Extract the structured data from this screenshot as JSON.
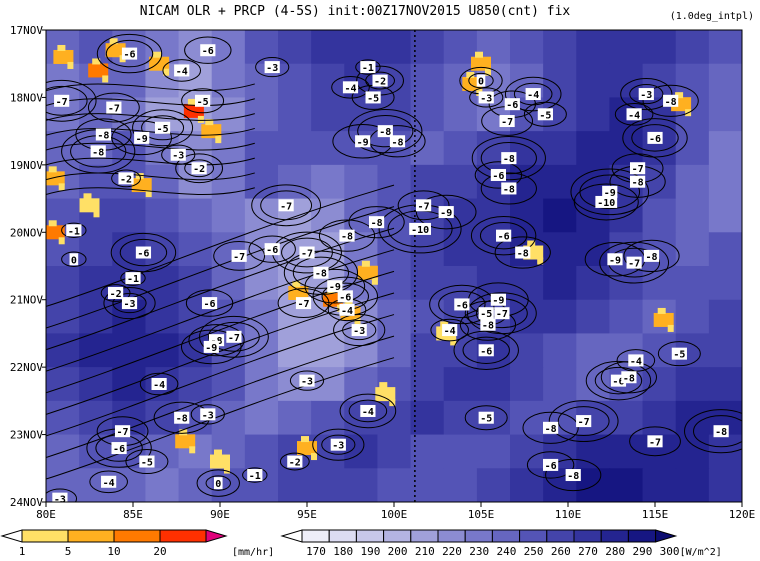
{
  "title": "NICAM  OLR + PRCP (4-5S) init:00Z17NOV2015 U850(cnt) fix",
  "subtitle": "(1.0deg_intpl)",
  "chart_data": {
    "type": "heatmap",
    "xlabel": "",
    "ylabel": "",
    "xlim": [
      80,
      120
    ],
    "x_ticks": [
      "80E",
      "85E",
      "90E",
      "95E",
      "100E",
      "105E",
      "110E",
      "115E",
      "120E"
    ],
    "x_tick_values": [
      80,
      85,
      90,
      95,
      100,
      105,
      110,
      115,
      120
    ],
    "y_ticks": [
      "17NOV",
      "18NOV",
      "19NOV",
      "20NOV",
      "21NOV",
      "22NOV",
      "23NOV",
      "24NOV"
    ],
    "y_tick_values": [
      0,
      1,
      2,
      3,
      4,
      5,
      6,
      7
    ],
    "reference_line_lon": 101.2,
    "precip_colorbar": {
      "unit": "[mm/hr]",
      "labels": [
        "1",
        "5",
        "10",
        "20"
      ],
      "colors": [
        "#ffffff",
        "#ffe066",
        "#ffb020",
        "#ff7a00",
        "#ff3000",
        "#e0007a"
      ]
    },
    "olr_colorbar": {
      "unit": "[W/m^2]",
      "labels": [
        "170",
        "180",
        "190",
        "200",
        "210",
        "220",
        "230",
        "240",
        "250",
        "260",
        "270",
        "280",
        "290",
        "300"
      ],
      "colors": [
        "#ffffff",
        "#eeeef8",
        "#dcdcf2",
        "#c8c8ea",
        "#b4b4e2",
        "#a0a0da",
        "#8c8cd2",
        "#7878ca",
        "#6666c0",
        "#5454b6",
        "#4444aa",
        "#34349e",
        "#242490",
        "#161682",
        "#0c0c70"
      ]
    },
    "olr_field_rows": [
      {
        "day": 0.25,
        "values": [
          240,
          250,
          245,
          230,
          220,
          235,
          250,
          265,
          270,
          275,
          270,
          260,
          250,
          245,
          250,
          260,
          270,
          275,
          270,
          260,
          250
        ]
      },
      {
        "day": 0.75,
        "values": [
          235,
          245,
          240,
          225,
          215,
          230,
          245,
          255,
          265,
          270,
          265,
          255,
          240,
          230,
          245,
          260,
          270,
          275,
          265,
          255,
          245
        ]
      },
      {
        "day": 1.25,
        "values": [
          230,
          240,
          235,
          215,
          210,
          225,
          240,
          250,
          260,
          265,
          260,
          250,
          240,
          235,
          250,
          265,
          275,
          280,
          270,
          255,
          240
        ]
      },
      {
        "day": 1.75,
        "values": [
          240,
          245,
          250,
          230,
          220,
          230,
          250,
          255,
          250,
          255,
          250,
          245,
          250,
          260,
          270,
          275,
          280,
          280,
          270,
          250,
          235
        ]
      },
      {
        "day": 2.25,
        "values": [
          245,
          250,
          255,
          240,
          225,
          235,
          250,
          240,
          230,
          240,
          250,
          260,
          265,
          270,
          280,
          285,
          285,
          275,
          260,
          245,
          230
        ]
      },
      {
        "day": 2.75,
        "values": [
          250,
          260,
          265,
          255,
          240,
          230,
          225,
          215,
          220,
          240,
          255,
          265,
          270,
          275,
          285,
          290,
          285,
          270,
          255,
          240,
          235
        ]
      },
      {
        "day": 3.25,
        "values": [
          255,
          265,
          270,
          265,
          255,
          240,
          225,
          210,
          215,
          235,
          255,
          265,
          270,
          275,
          280,
          285,
          280,
          265,
          250,
          245,
          250
        ]
      },
      {
        "day": 3.75,
        "values": [
          260,
          270,
          275,
          270,
          260,
          245,
          225,
          215,
          210,
          230,
          250,
          260,
          265,
          270,
          275,
          280,
          270,
          260,
          255,
          250,
          255
        ]
      },
      {
        "day": 4.25,
        "values": [
          265,
          275,
          280,
          275,
          265,
          250,
          230,
          215,
          215,
          225,
          245,
          255,
          260,
          265,
          270,
          270,
          260,
          250,
          245,
          250,
          260
        ]
      },
      {
        "day": 4.75,
        "values": [
          270,
          280,
          285,
          280,
          270,
          255,
          235,
          215,
          210,
          225,
          245,
          260,
          265,
          270,
          265,
          255,
          245,
          240,
          250,
          260,
          265
        ]
      },
      {
        "day": 5.25,
        "values": [
          265,
          275,
          280,
          275,
          265,
          250,
          230,
          220,
          225,
          240,
          255,
          265,
          270,
          270,
          260,
          250,
          245,
          250,
          260,
          270,
          275
        ]
      },
      {
        "day": 5.75,
        "values": [
          255,
          265,
          270,
          260,
          250,
          240,
          235,
          240,
          250,
          260,
          265,
          270,
          265,
          260,
          255,
          255,
          260,
          265,
          275,
          280,
          280
        ]
      },
      {
        "day": 6.25,
        "values": [
          245,
          255,
          250,
          240,
          235,
          245,
          255,
          260,
          265,
          270,
          265,
          255,
          250,
          255,
          260,
          270,
          280,
          285,
          285,
          280,
          275
        ]
      },
      {
        "day": 6.75,
        "values": [
          240,
          245,
          240,
          235,
          240,
          250,
          255,
          260,
          265,
          260,
          255,
          250,
          255,
          265,
          275,
          285,
          290,
          290,
          285,
          280,
          275
        ]
      }
    ],
    "precip_patches": [
      {
        "lon": 81,
        "day": 0.4,
        "value": 8
      },
      {
        "lon": 83,
        "day": 0.6,
        "value": 12
      },
      {
        "lon": 84,
        "day": 0.3,
        "value": 6
      },
      {
        "lon": 86.5,
        "day": 0.5,
        "value": 9
      },
      {
        "lon": 88.5,
        "day": 1.2,
        "value": 20
      },
      {
        "lon": 89.5,
        "day": 1.5,
        "value": 6
      },
      {
        "lon": 80.5,
        "day": 2.2,
        "value": 7
      },
      {
        "lon": 80.5,
        "day": 3.0,
        "value": 10
      },
      {
        "lon": 85.5,
        "day": 2.3,
        "value": 9
      },
      {
        "lon": 82.5,
        "day": 2.6,
        "value": 3
      },
      {
        "lon": 96.5,
        "day": 4.0,
        "value": 12
      },
      {
        "lon": 94.5,
        "day": 3.9,
        "value": 8
      },
      {
        "lon": 98.5,
        "day": 3.6,
        "value": 6
      },
      {
        "lon": 97.5,
        "day": 4.2,
        "value": 9
      },
      {
        "lon": 105,
        "day": 0.5,
        "value": 9
      },
      {
        "lon": 104.5,
        "day": 0.8,
        "value": 5
      },
      {
        "lon": 108,
        "day": 3.3,
        "value": 3
      },
      {
        "lon": 116.5,
        "day": 1.1,
        "value": 6
      },
      {
        "lon": 115.5,
        "day": 4.3,
        "value": 5
      },
      {
        "lon": 88,
        "day": 6.1,
        "value": 8
      },
      {
        "lon": 95,
        "day": 6.2,
        "value": 7
      },
      {
        "lon": 90,
        "day": 6.4,
        "value": 3
      },
      {
        "lon": 99.5,
        "day": 5.4,
        "value": 3
      },
      {
        "lon": 103,
        "day": 4.5,
        "value": 3
      }
    ],
    "contour_labels": [
      {
        "text": "-6",
        "lon": 84.8,
        "day": 0.35
      },
      {
        "text": "-6",
        "lon": 89.3,
        "day": 0.3
      },
      {
        "text": "-4",
        "lon": 87.8,
        "day": 0.6
      },
      {
        "text": "-7",
        "lon": 80.9,
        "day": 1.05
      },
      {
        "text": "-5",
        "lon": 89.0,
        "day": 1.05
      },
      {
        "text": "-7",
        "lon": 83.9,
        "day": 1.15
      },
      {
        "text": "-5",
        "lon": 86.7,
        "day": 1.45
      },
      {
        "text": "-8",
        "lon": 83.3,
        "day": 1.55
      },
      {
        "text": "-9",
        "lon": 85.5,
        "day": 1.6
      },
      {
        "text": "-8",
        "lon": 83.0,
        "day": 1.8
      },
      {
        "text": "-3",
        "lon": 87.6,
        "day": 1.85
      },
      {
        "text": "-2",
        "lon": 84.6,
        "day": 2.2
      },
      {
        "text": "-2",
        "lon": 88.8,
        "day": 2.05
      },
      {
        "text": "-1",
        "lon": 81.6,
        "day": 2.97
      },
      {
        "text": "0",
        "lon": 81.6,
        "day": 3.4
      },
      {
        "text": "-6",
        "lon": 85.6,
        "day": 3.3
      },
      {
        "text": "-1",
        "lon": 85.0,
        "day": 3.68
      },
      {
        "text": "-2",
        "lon": 84.0,
        "day": 3.9
      },
      {
        "text": "-3",
        "lon": 84.8,
        "day": 4.05
      },
      {
        "text": "-3",
        "lon": 93.0,
        "day": 0.55
      },
      {
        "text": "-1",
        "lon": 98.5,
        "day": 0.55
      },
      {
        "text": "-2",
        "lon": 99.2,
        "day": 0.75
      },
      {
        "text": "-4",
        "lon": 97.5,
        "day": 0.85
      },
      {
        "text": "-5",
        "lon": 98.8,
        "day": 1.0
      },
      {
        "text": "-8",
        "lon": 99.5,
        "day": 1.5
      },
      {
        "text": "-9",
        "lon": 98.2,
        "day": 1.65
      },
      {
        "text": "-8",
        "lon": 100.2,
        "day": 1.65
      },
      {
        "text": "-7",
        "lon": 93.8,
        "day": 2.6
      },
      {
        "text": "-8",
        "lon": 99.0,
        "day": 2.85
      },
      {
        "text": "-7",
        "lon": 101.7,
        "day": 2.6
      },
      {
        "text": "-10",
        "lon": 101.5,
        "day": 2.95
      },
      {
        "text": "-9",
        "lon": 103.0,
        "day": 2.7
      },
      {
        "text": "-8",
        "lon": 97.3,
        "day": 3.05
      },
      {
        "text": "-7",
        "lon": 95.0,
        "day": 3.3
      },
      {
        "text": "-6",
        "lon": 93.0,
        "day": 3.25
      },
      {
        "text": "-7",
        "lon": 91.1,
        "day": 3.35
      },
      {
        "text": "-8",
        "lon": 95.8,
        "day": 3.6
      },
      {
        "text": "-9",
        "lon": 96.6,
        "day": 3.8
      },
      {
        "text": "-7",
        "lon": 94.8,
        "day": 4.05
      },
      {
        "text": "-6",
        "lon": 97.2,
        "day": 3.95
      },
      {
        "text": "-4",
        "lon": 97.3,
        "day": 4.15
      },
      {
        "text": "-6",
        "lon": 89.4,
        "day": 4.05
      },
      {
        "text": "-7",
        "lon": 90.8,
        "day": 4.55
      },
      {
        "text": "-8",
        "lon": 89.8,
        "day": 4.6
      },
      {
        "text": "-9",
        "lon": 89.5,
        "day": 4.7
      },
      {
        "text": "-3",
        "lon": 98.0,
        "day": 4.45
      },
      {
        "text": "-3",
        "lon": 95.0,
        "day": 5.2
      },
      {
        "text": "-4",
        "lon": 86.5,
        "day": 5.25
      },
      {
        "text": "-4",
        "lon": 98.5,
        "day": 5.65
      },
      {
        "text": "-8",
        "lon": 87.8,
        "day": 5.75
      },
      {
        "text": "-7",
        "lon": 84.4,
        "day": 5.95
      },
      {
        "text": "-6",
        "lon": 84.2,
        "day": 6.2
      },
      {
        "text": "-5",
        "lon": 85.8,
        "day": 6.4
      },
      {
        "text": "-3",
        "lon": 89.3,
        "day": 5.7
      },
      {
        "text": "-3",
        "lon": 96.8,
        "day": 6.15
      },
      {
        "text": "-2",
        "lon": 94.3,
        "day": 6.4
      },
      {
        "text": "-1",
        "lon": 92.0,
        "day": 6.6
      },
      {
        "text": "0",
        "lon": 89.9,
        "day": 6.72
      },
      {
        "text": "-4",
        "lon": 83.6,
        "day": 6.7
      },
      {
        "text": "-3",
        "lon": 80.8,
        "day": 6.95
      },
      {
        "text": "0",
        "lon": 105.0,
        "day": 0.75
      },
      {
        "text": "-3",
        "lon": 105.3,
        "day": 1.0
      },
      {
        "text": "-6",
        "lon": 106.8,
        "day": 1.1
      },
      {
        "text": "-4",
        "lon": 108.0,
        "day": 0.95
      },
      {
        "text": "-7",
        "lon": 106.5,
        "day": 1.35
      },
      {
        "text": "-5",
        "lon": 108.7,
        "day": 1.25
      },
      {
        "text": "-8",
        "lon": 106.6,
        "day": 1.9
      },
      {
        "text": "-6",
        "lon": 106.0,
        "day": 2.15
      },
      {
        "text": "-8",
        "lon": 106.6,
        "day": 2.35
      },
      {
        "text": "-6",
        "lon": 106.3,
        "day": 3.05
      },
      {
        "text": "-7",
        "lon": 114.0,
        "day": 2.05
      },
      {
        "text": "-8",
        "lon": 114.0,
        "day": 2.25
      },
      {
        "text": "-9",
        "lon": 112.4,
        "day": 2.4
      },
      {
        "text": "-10",
        "lon": 112.2,
        "day": 2.55
      },
      {
        "text": "-9",
        "lon": 112.7,
        "day": 3.4
      },
      {
        "text": "-7",
        "lon": 113.8,
        "day": 3.45
      },
      {
        "text": "-8",
        "lon": 114.8,
        "day": 3.35
      },
      {
        "text": "-8",
        "lon": 107.4,
        "day": 3.3
      },
      {
        "text": "-6",
        "lon": 103.9,
        "day": 4.07
      },
      {
        "text": "-9",
        "lon": 106.0,
        "day": 4.0
      },
      {
        "text": "-5",
        "lon": 105.3,
        "day": 4.2
      },
      {
        "text": "-7",
        "lon": 106.2,
        "day": 4.2
      },
      {
        "text": "-8",
        "lon": 105.4,
        "day": 4.37
      },
      {
        "text": "-4",
        "lon": 103.2,
        "day": 4.45
      },
      {
        "text": "-6",
        "lon": 105.3,
        "day": 4.75
      },
      {
        "text": "-5",
        "lon": 105.3,
        "day": 5.75
      },
      {
        "text": "-8",
        "lon": 109.0,
        "day": 5.9
      },
      {
        "text": "-7",
        "lon": 110.9,
        "day": 5.8
      },
      {
        "text": "-6",
        "lon": 109.0,
        "day": 6.45
      },
      {
        "text": "-8",
        "lon": 110.3,
        "day": 6.6
      },
      {
        "text": "-6",
        "lon": 115.0,
        "day": 1.6
      },
      {
        "text": "-8",
        "lon": 115.9,
        "day": 1.05
      },
      {
        "text": "-4",
        "lon": 113.8,
        "day": 1.25
      },
      {
        "text": "-3",
        "lon": 114.5,
        "day": 0.95
      },
      {
        "text": "-4",
        "lon": 113.9,
        "day": 4.9
      },
      {
        "text": "-5",
        "lon": 116.4,
        "day": 4.8
      },
      {
        "text": "-6",
        "lon": 112.9,
        "day": 5.2
      },
      {
        "text": "-8",
        "lon": 113.5,
        "day": 5.15
      },
      {
        "text": "-7",
        "lon": 115.0,
        "day": 6.1
      },
      {
        "text": "-8",
        "lon": 118.8,
        "day": 5.95
      }
    ]
  }
}
